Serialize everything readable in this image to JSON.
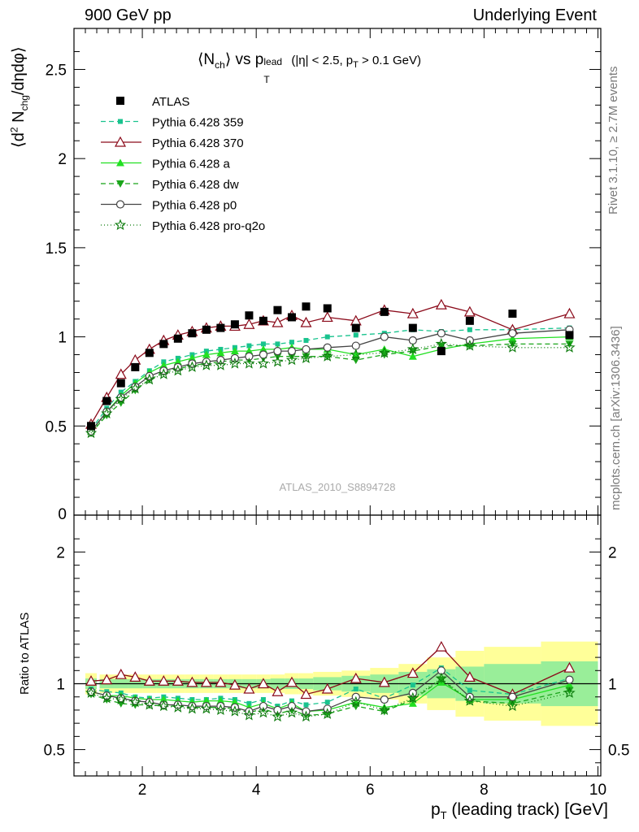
{
  "header": {
    "left": "900 GeV pp",
    "right": "Underlying Event"
  },
  "side_labels": {
    "rivet": "Rivet 3.1.10, ≥ 2.7M events",
    "mcplots": "mcplots.cern.ch [arXiv:1306.3436]"
  },
  "chart_data": {
    "type": "scatter",
    "title": "<N_ch> vs p_T^lead (|η| < 2.5, p_T > 0.1 GeV)",
    "title_parts": {
      "open": "⟨N",
      "sub1": "ch",
      "mid": "⟩ vs p",
      "sub2": "T",
      "sup2": "lead",
      "cut1": "(|η| < 2.5, p",
      "sub3": "T",
      "cut2": " > 0.1 GeV)"
    },
    "watermark": "ATLAS_2010_S8894728",
    "xlabel": "p_T (leading track) [GeV]",
    "xlabel_parts": {
      "main": "p",
      "sub": "T",
      "rest": " (leading track) [GeV]"
    },
    "ylabel": "⟨d² N_chg/dηdφ⟩",
    "ylabel_parts": {
      "open": "⟨d",
      "sup": "2",
      "n": " N",
      "sub": "chg",
      "rest": "/dηdφ⟩"
    },
    "ratio_ylabel": "Ratio to ATLAS",
    "xlim": [
      0.8,
      10.05
    ],
    "ylim": [
      0,
      2.73
    ],
    "ratio_ylim": [
      0.3,
      2.28
    ],
    "x_ticks": [
      2,
      4,
      6,
      8,
      10
    ],
    "x_tick_labels": [
      "2",
      "4",
      "6",
      "8",
      "10"
    ],
    "y_ticks": [
      0.5,
      1,
      1.5,
      2,
      2.5
    ],
    "y_tick_labels": [
      "0.5",
      "1",
      "1.5",
      "2",
      "2.5"
    ],
    "y_zero_label": "0",
    "ratio_ticks": [
      0.5,
      1,
      2
    ],
    "ratio_tick_labels": [
      "0.5",
      "1",
      "2"
    ],
    "legend_position": "top-left",
    "x": [
      1.1,
      1.375,
      1.625,
      1.875,
      2.125,
      2.375,
      2.625,
      2.875,
      3.125,
      3.375,
      3.625,
      3.875,
      4.125,
      4.375,
      4.625,
      4.875,
      5.25,
      5.75,
      6.25,
      6.75,
      7.25,
      7.75,
      8.5,
      9.5
    ],
    "x_err": [
      0.1,
      0.125,
      0.125,
      0.125,
      0.125,
      0.125,
      0.125,
      0.125,
      0.125,
      0.125,
      0.125,
      0.125,
      0.125,
      0.125,
      0.125,
      0.125,
      0.25,
      0.25,
      0.25,
      0.25,
      0.25,
      0.25,
      0.5,
      0.5
    ],
    "band_yellow": [
      0.08,
      0.07,
      0.07,
      0.07,
      0.07,
      0.07,
      0.07,
      0.07,
      0.07,
      0.07,
      0.07,
      0.07,
      0.07,
      0.07,
      0.08,
      0.08,
      0.09,
      0.1,
      0.12,
      0.15,
      0.2,
      0.25,
      0.28,
      0.32
    ],
    "band_green": [
      0.04,
      0.035,
      0.035,
      0.035,
      0.035,
      0.035,
      0.035,
      0.035,
      0.035,
      0.035,
      0.035,
      0.035,
      0.035,
      0.04,
      0.04,
      0.04,
      0.05,
      0.06,
      0.07,
      0.09,
      0.11,
      0.13,
      0.15,
      0.17
    ],
    "data": {
      "name": "ATLAS",
      "values": [
        0.5,
        0.64,
        0.74,
        0.83,
        0.91,
        0.96,
        0.99,
        1.02,
        1.04,
        1.05,
        1.07,
        1.12,
        1.09,
        1.15,
        1.11,
        1.17,
        1.16,
        1.05,
        1.14,
        1.05,
        0.92,
        1.09,
        1.13,
        1.01
      ]
    },
    "series": [
      {
        "name": "Pythia 6.428 359",
        "color": "#19c38e",
        "dash": "6,4",
        "marker": "square-small",
        "values": [
          0.48,
          0.6,
          0.69,
          0.75,
          0.81,
          0.86,
          0.88,
          0.9,
          0.92,
          0.93,
          0.94,
          0.95,
          0.96,
          0.96,
          0.97,
          0.98,
          1.0,
          1.01,
          1.02,
          1.04,
          1.03,
          1.04,
          1.04,
          1.05
        ],
        "ratio": [
          0.96,
          0.94,
          0.93,
          0.9,
          0.89,
          0.9,
          0.89,
          0.88,
          0.88,
          0.89,
          0.88,
          0.85,
          0.88,
          0.83,
          0.87,
          0.84,
          0.86,
          0.96,
          0.89,
          0.99,
          1.12,
          0.95,
          0.92,
          1.04
        ]
      },
      {
        "name": "Pythia 6.428 370",
        "color": "#8b0a1a",
        "dash": "",
        "marker": "triangle-open",
        "values": [
          0.51,
          0.66,
          0.79,
          0.87,
          0.93,
          0.98,
          1.01,
          1.03,
          1.05,
          1.06,
          1.06,
          1.07,
          1.09,
          1.08,
          1.12,
          1.08,
          1.11,
          1.09,
          1.15,
          1.13,
          1.18,
          1.14,
          1.04,
          1.13
        ],
        "ratio": [
          1.02,
          1.03,
          1.07,
          1.05,
          1.02,
          1.02,
          1.02,
          1.01,
          1.01,
          1.01,
          0.99,
          0.96,
          1.0,
          0.94,
          1.01,
          0.92,
          0.96,
          1.04,
          1.01,
          1.08,
          1.28,
          1.05,
          0.92,
          1.12
        ]
      },
      {
        "name": "Pythia 6.428 a",
        "color": "#22e022",
        "dash": "",
        "marker": "triangle-filled",
        "values": [
          0.47,
          0.58,
          0.67,
          0.74,
          0.8,
          0.84,
          0.86,
          0.88,
          0.9,
          0.91,
          0.92,
          0.92,
          0.93,
          0.93,
          0.94,
          0.93,
          0.93,
          0.9,
          0.93,
          0.89,
          0.93,
          0.96,
          0.99,
          1.0
        ],
        "ratio": [
          0.94,
          0.91,
          0.91,
          0.89,
          0.88,
          0.88,
          0.87,
          0.86,
          0.87,
          0.87,
          0.86,
          0.82,
          0.85,
          0.81,
          0.85,
          0.79,
          0.8,
          0.86,
          0.82,
          0.85,
          1.01,
          0.88,
          0.88,
          0.99
        ]
      },
      {
        "name": "Pythia 6.428 dw",
        "color": "#1aa51a",
        "dash": "6,4",
        "marker": "triangle-down",
        "values": [
          0.46,
          0.56,
          0.63,
          0.7,
          0.76,
          0.8,
          0.82,
          0.84,
          0.85,
          0.86,
          0.87,
          0.87,
          0.88,
          0.89,
          0.89,
          0.89,
          0.89,
          0.87,
          0.9,
          0.92,
          0.95,
          0.95,
          0.96,
          0.96
        ],
        "ratio": [
          0.92,
          0.88,
          0.85,
          0.84,
          0.84,
          0.83,
          0.83,
          0.82,
          0.82,
          0.82,
          0.81,
          0.78,
          0.81,
          0.77,
          0.8,
          0.76,
          0.77,
          0.83,
          0.79,
          0.88,
          1.03,
          0.87,
          0.85,
          0.95
        ]
      },
      {
        "name": "Pythia 6.428 p0",
        "color": "#444444",
        "dash": "",
        "marker": "circle-open",
        "values": [
          0.47,
          0.58,
          0.66,
          0.72,
          0.78,
          0.81,
          0.83,
          0.85,
          0.86,
          0.87,
          0.88,
          0.89,
          0.9,
          0.92,
          0.92,
          0.93,
          0.94,
          0.95,
          1.0,
          0.98,
          1.02,
          0.98,
          1.02,
          1.04
        ],
        "ratio": [
          0.94,
          0.91,
          0.89,
          0.87,
          0.86,
          0.84,
          0.84,
          0.83,
          0.83,
          0.83,
          0.82,
          0.79,
          0.83,
          0.8,
          0.83,
          0.79,
          0.81,
          0.9,
          0.88,
          0.93,
          1.1,
          0.9,
          0.9,
          1.03
        ]
      },
      {
        "name": "Pythia 6.428 pro-q2o",
        "color": "#0a7a0a",
        "dash": "1,3",
        "marker": "star",
        "values": [
          0.46,
          0.57,
          0.65,
          0.71,
          0.76,
          0.79,
          0.81,
          0.83,
          0.84,
          0.84,
          0.85,
          0.85,
          0.85,
          0.86,
          0.87,
          0.88,
          0.89,
          0.9,
          0.91,
          0.93,
          0.96,
          0.95,
          0.94,
          0.94
        ],
        "ratio": [
          0.93,
          0.89,
          0.88,
          0.86,
          0.84,
          0.83,
          0.82,
          0.81,
          0.81,
          0.8,
          0.79,
          0.76,
          0.78,
          0.75,
          0.78,
          0.75,
          0.77,
          0.86,
          0.8,
          0.89,
          1.04,
          0.87,
          0.83,
          0.93
        ]
      }
    ]
  }
}
